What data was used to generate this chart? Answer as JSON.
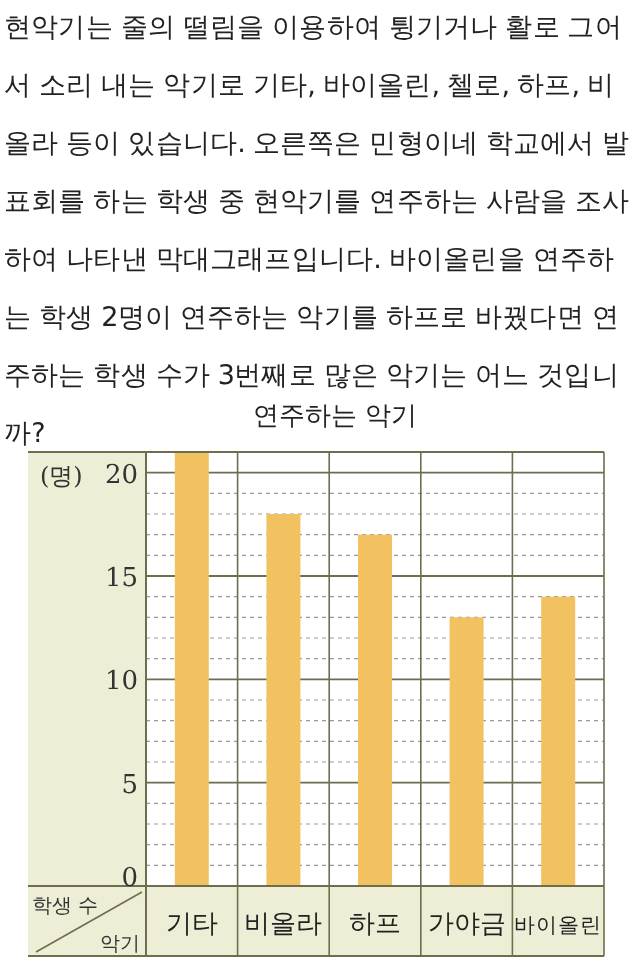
{
  "chart_data": {
    "type": "bar",
    "title": "연주하는 악기",
    "annotations": [
      "현악기는 줄의 떨림을 이용하여 튕기거나 활로 그어서 소리 내는 악기로 기타, 바이올린, 첼로, 하프, 비올라 등이 있습니다. 오른쪽은 민형이네 학교에서 발표회를 하는 학생 중 현악기를 연주하는 사람을 조사하여 나타낸 막대그래프입니다. 바이올린을 연주하는 학생 2명이 연주하는 악기를 하프로 바꿨다면 연주하는 학생 수가 3번째로 많은 악기는 어느 것입니까?",
      "(명)"
    ],
    "xlabel": "악기",
    "ylabel": "학생 수",
    "categories": [
      "기타",
      "비올라",
      "하프",
      "가야금",
      "바이올린"
    ],
    "values": [
      21,
      18,
      17,
      13,
      14
    ],
    "color": "#f2c261",
    "ylim": [
      0,
      21
    ],
    "yticks": [
      0,
      5,
      10,
      15,
      20
    ],
    "grid": true
  }
}
